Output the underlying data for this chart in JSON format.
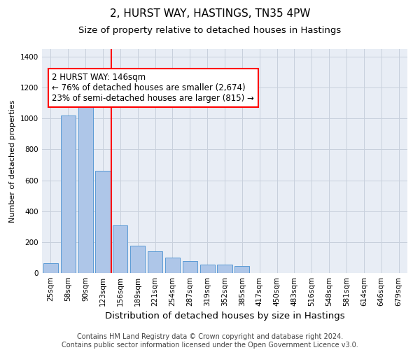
{
  "title": "2, HURST WAY, HASTINGS, TN35 4PW",
  "subtitle": "Size of property relative to detached houses in Hastings",
  "xlabel": "Distribution of detached houses by size in Hastings",
  "ylabel": "Number of detached properties",
  "categories": [
    "25sqm",
    "58sqm",
    "90sqm",
    "123sqm",
    "156sqm",
    "189sqm",
    "221sqm",
    "254sqm",
    "287sqm",
    "319sqm",
    "352sqm",
    "385sqm",
    "417sqm",
    "450sqm",
    "483sqm",
    "516sqm",
    "548sqm",
    "581sqm",
    "614sqm",
    "646sqm",
    "679sqm"
  ],
  "values": [
    65,
    1020,
    1100,
    660,
    310,
    175,
    140,
    100,
    75,
    55,
    55,
    45,
    0,
    0,
    0,
    0,
    0,
    0,
    0,
    0,
    0
  ],
  "bar_color": "#aec6e8",
  "bar_edge_color": "#5b9bd5",
  "vline_pos": 3.5,
  "vline_color": "red",
  "annotation_text": "2 HURST WAY: 146sqm\n← 76% of detached houses are smaller (2,674)\n23% of semi-detached houses are larger (815) →",
  "annotation_box_color": "white",
  "annotation_box_edge_color": "red",
  "ylim": [
    0,
    1450
  ],
  "yticks": [
    0,
    200,
    400,
    600,
    800,
    1000,
    1200,
    1400
  ],
  "grid_color": "#c8d0dc",
  "background_color": "#e8edf5",
  "footnote": "Contains HM Land Registry data © Crown copyright and database right 2024.\nContains public sector information licensed under the Open Government Licence v3.0.",
  "title_fontsize": 11,
  "subtitle_fontsize": 9.5,
  "xlabel_fontsize": 9.5,
  "ylabel_fontsize": 8,
  "tick_fontsize": 7.5,
  "annotation_fontsize": 8.5,
  "footnote_fontsize": 7
}
